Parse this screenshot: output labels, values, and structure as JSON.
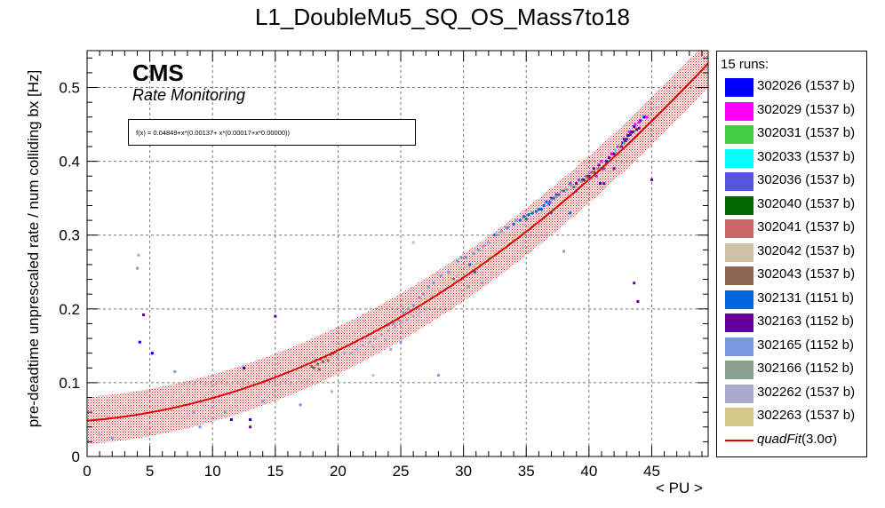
{
  "chart_data": {
    "type": "scatter",
    "title": "L1_DoubleMu5_SQ_OS_Mass7to18",
    "xlabel": "< PU >",
    "ylabel": "pre-deadtime unprescaled rate / num colliding bx [Hz]",
    "xlim": [
      0,
      49.5
    ],
    "ylim": [
      0,
      0.55
    ],
    "x_ticks": [
      "0",
      "5",
      "10",
      "15",
      "20",
      "25",
      "30",
      "35",
      "40",
      "45"
    ],
    "y_ticks": [
      "0",
      "0.1",
      "0.2",
      "0.3",
      "0.4",
      "0.5"
    ],
    "grid": true,
    "legend_position": "right",
    "cms_label": "CMS",
    "cms_sublabel": "Rate Monitoring",
    "fit_formula": "f(x) = 0.04849+x*(0.00137+ x*(0.00017+x*0.00000))",
    "fit": {
      "name": "quadFit",
      "band_label": "(3.0σ)",
      "coefficients": [
        0.04849,
        0.00137,
        0.00017,
        0.0
      ],
      "band_halfwidth": 0.032,
      "color": "#e00000"
    },
    "legend_header": "15 runs:",
    "series": [
      {
        "name": "302026 (1537 b)",
        "color": "#0000ff",
        "points": [
          [
            43.6,
            0.447
          ],
          [
            42.8,
            0.43
          ],
          [
            43.1,
            0.435
          ],
          [
            44.1,
            0.455
          ],
          [
            42.5,
            0.42
          ],
          [
            43.4,
            0.44
          ],
          [
            41.9,
            0.41
          ],
          [
            44.4,
            0.46
          ],
          [
            13.0,
            0.05
          ],
          [
            11.5,
            0.05
          ],
          [
            4.2,
            0.155
          ],
          [
            40.9,
            0.37
          ],
          [
            12.5,
            0.12
          ],
          [
            41.5,
            0.4
          ],
          [
            42.7,
            0.425
          ],
          [
            5.2,
            0.14
          ]
        ]
      },
      {
        "name": "302029 (1537 b)",
        "color": "#ff00ff",
        "points": [
          [
            44.0,
            0.453
          ],
          [
            43.2,
            0.44
          ],
          [
            42.3,
            0.42
          ],
          [
            43.7,
            0.45
          ],
          [
            41.8,
            0.41
          ],
          [
            42.9,
            0.43
          ],
          [
            41.0,
            0.4
          ],
          [
            44.6,
            0.46
          ]
        ]
      },
      {
        "name": "302031 (1537 b)",
        "color": "#44cc44",
        "points": [
          [
            42.0,
            0.41
          ],
          [
            42.4,
            0.42
          ],
          [
            43.0,
            0.43
          ],
          [
            41.6,
            0.405
          ],
          [
            42.8,
            0.425
          ]
        ]
      },
      {
        "name": "302033 (1537 b)",
        "color": "#00ffff",
        "points": [
          [
            41.5,
            0.4
          ],
          [
            42.1,
            0.415
          ],
          [
            40.9,
            0.39
          ],
          [
            42.6,
            0.42
          ]
        ]
      },
      {
        "name": "302036 (1537 b)",
        "color": "#5555dd",
        "points": [
          [
            38.0,
            0.36
          ],
          [
            38.5,
            0.37
          ],
          [
            39.2,
            0.375
          ],
          [
            37.6,
            0.355
          ],
          [
            39.8,
            0.38
          ],
          [
            40.2,
            0.385
          ],
          [
            37.2,
            0.35
          ],
          [
            36.9,
            0.345
          ],
          [
            38.8,
            0.365
          ],
          [
            41.2,
            0.39
          ],
          [
            40.6,
            0.38
          ],
          [
            37.0,
            0.33
          ],
          [
            39.0,
            0.36
          ]
        ]
      },
      {
        "name": "302040 (1537 b)",
        "color": "#006600",
        "points": [
          [
            40.0,
            0.38
          ],
          [
            40.4,
            0.385
          ],
          [
            39.6,
            0.375
          ],
          [
            41.0,
            0.39
          ]
        ]
      },
      {
        "name": "302041 (1537 b)",
        "color": "#cc6666",
        "points": [
          [
            40.3,
            0.385
          ],
          [
            40.7,
            0.39
          ],
          [
            39.9,
            0.378
          ],
          [
            41.3,
            0.395
          ]
        ]
      },
      {
        "name": "302042 (1537 b)",
        "color": "#ccc2a5",
        "points": [
          [
            26.0,
            0.29
          ],
          [
            33.2,
            0.3
          ],
          [
            36.2,
            0.33
          ],
          [
            26.5,
            0.19
          ],
          [
            22.8,
            0.11
          ],
          [
            23.4,
            0.2
          ],
          [
            31.0,
            0.28
          ]
        ]
      },
      {
        "name": "302043 (1537 b)",
        "color": "#8b6650",
        "points": [
          [
            18.2,
            0.13
          ],
          [
            18.6,
            0.132
          ],
          [
            19.0,
            0.135
          ],
          [
            19.4,
            0.138
          ],
          [
            18.4,
            0.125
          ],
          [
            18.8,
            0.128
          ],
          [
            19.2,
            0.13
          ],
          [
            19.6,
            0.14
          ],
          [
            17.9,
            0.122
          ],
          [
            18.1,
            0.12
          ],
          [
            19.8,
            0.142
          ],
          [
            18.5,
            0.118
          ]
        ]
      },
      {
        "name": "302131 (1151 b)",
        "color": "#0066dd",
        "points": [
          [
            35.5,
            0.33
          ],
          [
            36.0,
            0.335
          ],
          [
            34.8,
            0.325
          ],
          [
            36.4,
            0.34
          ],
          [
            35.2,
            0.328
          ],
          [
            35.8,
            0.332
          ],
          [
            36.6,
            0.345
          ],
          [
            34.5,
            0.32
          ],
          [
            37.0,
            0.35
          ],
          [
            37.4,
            0.355
          ],
          [
            36.2,
            0.335
          ],
          [
            36.8,
            0.342
          ],
          [
            35.0,
            0.322
          ],
          [
            38.5,
            0.33
          ],
          [
            32.5,
            0.3
          ],
          [
            33.5,
            0.31
          ],
          [
            34.0,
            0.315
          ],
          [
            30.5,
            0.26
          ],
          [
            29.2,
            0.24
          ],
          [
            30.9,
            0.25
          ]
        ]
      },
      {
        "name": "302163 (1152 b)",
        "color": "#660099",
        "points": [
          [
            40.8,
            0.395
          ],
          [
            41.4,
            0.4
          ],
          [
            42.0,
            0.41
          ],
          [
            42.6,
            0.42
          ],
          [
            43.0,
            0.43
          ],
          [
            43.5,
            0.44
          ],
          [
            44.0,
            0.445
          ],
          [
            40.4,
            0.39
          ],
          [
            39.5,
            0.375
          ],
          [
            40.0,
            0.38
          ],
          [
            41.6,
            0.405
          ],
          [
            42.9,
            0.428
          ],
          [
            43.8,
            0.443
          ],
          [
            43.3,
            0.436
          ],
          [
            4.5,
            0.192
          ],
          [
            15.0,
            0.19
          ],
          [
            43.6,
            0.235
          ],
          [
            43.9,
            0.21
          ],
          [
            45.0,
            0.375
          ],
          [
            42.0,
            0.39
          ],
          [
            41.2,
            0.37
          ],
          [
            39.0,
            0.37
          ],
          [
            13.0,
            0.04
          ]
        ]
      },
      {
        "name": "302165 (1152 b)",
        "color": "#7799dd",
        "points": [
          [
            32.0,
            0.29
          ],
          [
            32.6,
            0.3
          ],
          [
            33.0,
            0.305
          ],
          [
            31.6,
            0.285
          ],
          [
            33.4,
            0.31
          ],
          [
            34.2,
            0.32
          ],
          [
            31.2,
            0.28
          ],
          [
            30.8,
            0.275
          ],
          [
            29.5,
            0.265
          ],
          [
            28.8,
            0.25
          ],
          [
            28.2,
            0.245
          ],
          [
            27.6,
            0.235
          ],
          [
            29.8,
            0.27
          ],
          [
            30.2,
            0.27
          ],
          [
            27.2,
            0.23
          ],
          [
            26.5,
            0.215
          ],
          [
            26.8,
            0.22
          ],
          [
            26.0,
            0.205
          ],
          [
            25.6,
            0.2
          ],
          [
            25.2,
            0.195
          ],
          [
            24.8,
            0.185
          ],
          [
            24.4,
            0.18
          ],
          [
            24.0,
            0.178
          ],
          [
            4.0,
            0.255
          ],
          [
            7.0,
            0.115
          ],
          [
            31.5,
            0.235
          ],
          [
            25.0,
            0.155
          ],
          [
            28.0,
            0.11
          ],
          [
            14.0,
            0.075
          ],
          [
            11.0,
            0.06
          ],
          [
            2.0,
            0.025
          ],
          [
            8.5,
            0.06
          ],
          [
            9.0,
            0.04
          ],
          [
            17.0,
            0.07
          ],
          [
            30.4,
            0.23
          ]
        ]
      },
      {
        "name": "302166 (1152 b)",
        "color": "#88a090",
        "points": [
          [
            37.8,
            0.36
          ],
          [
            38.2,
            0.362
          ],
          [
            37.4,
            0.352
          ],
          [
            38.6,
            0.368
          ],
          [
            39.4,
            0.372
          ],
          [
            38.0,
            0.278
          ]
        ]
      },
      {
        "name": "302262 (1537 b)",
        "color": "#aaaacc",
        "points": [
          [
            22.0,
            0.15
          ],
          [
            22.5,
            0.155
          ],
          [
            23.0,
            0.16
          ],
          [
            23.5,
            0.165
          ],
          [
            24.0,
            0.17
          ],
          [
            21.5,
            0.145
          ],
          [
            21.0,
            0.14
          ],
          [
            20.5,
            0.14
          ],
          [
            20.0,
            0.135
          ],
          [
            24.5,
            0.175
          ],
          [
            25.0,
            0.18
          ],
          [
            25.5,
            0.185
          ],
          [
            26.0,
            0.19
          ],
          [
            26.5,
            0.195
          ],
          [
            27.0,
            0.2
          ],
          [
            23.8,
            0.158
          ],
          [
            22.8,
            0.148
          ],
          [
            4.1,
            0.273
          ],
          [
            1.0,
            0.03
          ],
          [
            19.5,
            0.088
          ],
          [
            24.2,
            0.145
          ]
        ]
      },
      {
        "name": "302263 (1537 b)",
        "color": "#d4c88a",
        "points": [
          [
            28.5,
            0.235
          ],
          [
            29.0,
            0.24
          ],
          [
            29.5,
            0.245
          ],
          [
            30.0,
            0.25
          ],
          [
            30.5,
            0.255
          ],
          [
            31.0,
            0.26
          ],
          [
            31.5,
            0.265
          ],
          [
            32.0,
            0.27
          ],
          [
            32.5,
            0.275
          ],
          [
            33.0,
            0.28
          ],
          [
            33.5,
            0.29
          ],
          [
            34.0,
            0.295
          ],
          [
            28.0,
            0.225
          ],
          [
            27.5,
            0.22
          ],
          [
            34.5,
            0.3
          ],
          [
            35.0,
            0.305
          ],
          [
            35.5,
            0.31
          ],
          [
            29.2,
            0.238
          ],
          [
            30.8,
            0.258
          ],
          [
            32.2,
            0.272
          ],
          [
            33.8,
            0.29
          ],
          [
            31.2,
            0.262
          ],
          [
            27.0,
            0.213
          ],
          [
            26.6,
            0.21
          ]
        ]
      }
    ]
  }
}
